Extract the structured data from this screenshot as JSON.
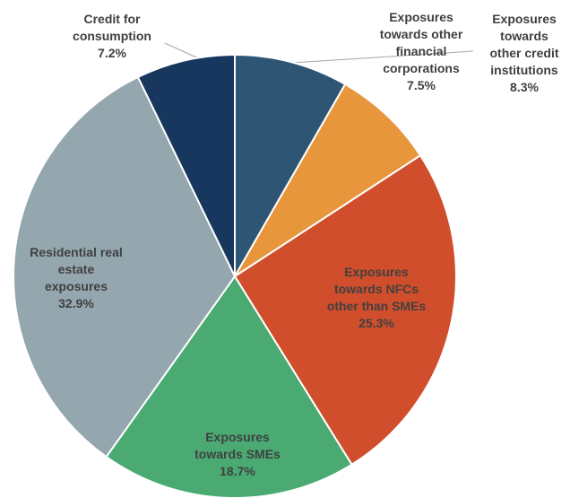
{
  "chart_data": {
    "type": "pie",
    "categories": [
      "Exposures\ntowards\nother credit\ninstitutions",
      "Exposures\ntowards other\nfinancial\ncorporations",
      "Exposures\ntowards NFCs\nother than SMEs",
      "Exposures\ntowards SMEs",
      "Residential real\nestate\nexposures",
      "Credit for\nconsumption"
    ],
    "values": [
      8.3,
      7.5,
      25.3,
      18.7,
      32.9,
      7.2
    ],
    "value_labels": [
      "8.3%",
      "7.5%",
      "25.3%",
      "18.7%",
      "32.9%",
      "7.2%"
    ],
    "colors": [
      "#2e5574",
      "#e8963c",
      "#d04e2b",
      "#4aaa72",
      "#94a6ae",
      "#17375e"
    ]
  }
}
